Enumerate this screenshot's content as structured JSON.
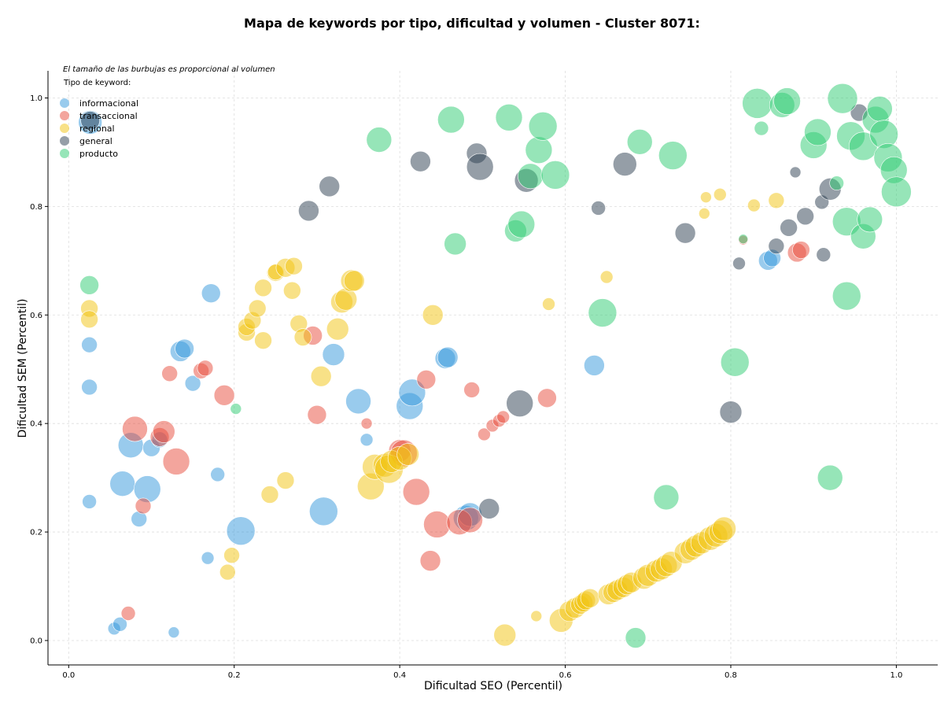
{
  "chart_data": {
    "type": "scatter",
    "title": "Mapa de keywords por tipo, dificultad y volumen - Cluster 8071:",
    "xlabel": "Dificultad SEO (Percentil)",
    "ylabel": "Dificultad SEM (Percentil)",
    "xlim": [
      -0.025,
      1.05
    ],
    "ylim": [
      -0.045,
      1.05
    ],
    "xticks": [
      0.0,
      0.2,
      0.4,
      0.6,
      0.8,
      1.0
    ],
    "yticks": [
      0.0,
      0.2,
      0.4,
      0.6,
      0.8,
      1.0
    ],
    "xtick_labels": [
      "0.0",
      "0.2",
      "0.4",
      "0.6",
      "0.8",
      "1.0"
    ],
    "ytick_labels": [
      "0.0",
      "0.2",
      "0.4",
      "0.6",
      "0.8",
      "1.0"
    ],
    "grid": true,
    "legend_position": "top-left",
    "note": "El tamaño de las burbujas es proporcional al volumen",
    "legend_title": "Tipo de keyword:",
    "series": [
      {
        "name": "informacional",
        "color": "#3498db",
        "points": [
          [
            0.026,
            0.955,
            15
          ],
          [
            0.025,
            0.545,
            10
          ],
          [
            0.025,
            0.467,
            10
          ],
          [
            0.025,
            0.256,
            9
          ],
          [
            0.055,
            0.022,
            8
          ],
          [
            0.062,
            0.03,
            9
          ],
          [
            0.065,
            0.289,
            16
          ],
          [
            0.075,
            0.36,
            16
          ],
          [
            0.095,
            0.279,
            17
          ],
          [
            0.1,
            0.355,
            11
          ],
          [
            0.11,
            0.37,
            10
          ],
          [
            0.085,
            0.224,
            10
          ],
          [
            0.135,
            0.533,
            13
          ],
          [
            0.14,
            0.538,
            12
          ],
          [
            0.15,
            0.474,
            10
          ],
          [
            0.172,
            0.64,
            12
          ],
          [
            0.18,
            0.306,
            9
          ],
          [
            0.168,
            0.152,
            8
          ],
          [
            0.127,
            0.015,
            7
          ],
          [
            0.208,
            0.202,
            18
          ],
          [
            0.32,
            0.527,
            14
          ],
          [
            0.35,
            0.441,
            16
          ],
          [
            0.308,
            0.238,
            18
          ],
          [
            0.36,
            0.37,
            8
          ],
          [
            0.412,
            0.432,
            17
          ],
          [
            0.415,
            0.457,
            17
          ],
          [
            0.455,
            0.52,
            13
          ],
          [
            0.458,
            0.522,
            13
          ],
          [
            0.48,
            0.226,
            16
          ],
          [
            0.485,
            0.232,
            15
          ],
          [
            0.635,
            0.507,
            13
          ],
          [
            0.845,
            0.7,
            12
          ],
          [
            0.85,
            0.705,
            11
          ]
        ]
      },
      {
        "name": "transaccional",
        "color": "#e74c3c",
        "points": [
          [
            0.072,
            0.05,
            9
          ],
          [
            0.08,
            0.39,
            16
          ],
          [
            0.09,
            0.248,
            10
          ],
          [
            0.11,
            0.375,
            12
          ],
          [
            0.115,
            0.385,
            14
          ],
          [
            0.122,
            0.492,
            10
          ],
          [
            0.13,
            0.33,
            17
          ],
          [
            0.16,
            0.497,
            10
          ],
          [
            0.165,
            0.502,
            10
          ],
          [
            0.188,
            0.452,
            13
          ],
          [
            0.295,
            0.562,
            12
          ],
          [
            0.3,
            0.416,
            12
          ],
          [
            0.36,
            0.4,
            7
          ],
          [
            0.4,
            0.35,
            14
          ],
          [
            0.405,
            0.345,
            17
          ],
          [
            0.42,
            0.274,
            17
          ],
          [
            0.432,
            0.481,
            12
          ],
          [
            0.437,
            0.147,
            13
          ],
          [
            0.445,
            0.214,
            17
          ],
          [
            0.472,
            0.218,
            16
          ],
          [
            0.485,
            0.222,
            16
          ],
          [
            0.487,
            0.462,
            10
          ],
          [
            0.502,
            0.38,
            8
          ],
          [
            0.512,
            0.396,
            8
          ],
          [
            0.52,
            0.405,
            8
          ],
          [
            0.525,
            0.412,
            8
          ],
          [
            0.578,
            0.447,
            12
          ],
          [
            0.815,
            0.738,
            6
          ],
          [
            0.88,
            0.715,
            12
          ],
          [
            0.885,
            0.72,
            11
          ]
        ]
      },
      {
        "name": "regional",
        "color": "#f1c40f",
        "points": [
          [
            0.025,
            0.612,
            11
          ],
          [
            0.025,
            0.592,
            11
          ],
          [
            0.192,
            0.126,
            10
          ],
          [
            0.197,
            0.157,
            10
          ],
          [
            0.215,
            0.568,
            11
          ],
          [
            0.215,
            0.578,
            11
          ],
          [
            0.222,
            0.59,
            11
          ],
          [
            0.228,
            0.612,
            11
          ],
          [
            0.235,
            0.553,
            11
          ],
          [
            0.235,
            0.65,
            11
          ],
          [
            0.243,
            0.269,
            11
          ],
          [
            0.25,
            0.678,
            11
          ],
          [
            0.25,
            0.679,
            10
          ],
          [
            0.262,
            0.295,
            11
          ],
          [
            0.262,
            0.687,
            12
          ],
          [
            0.27,
            0.645,
            11
          ],
          [
            0.272,
            0.69,
            11
          ],
          [
            0.278,
            0.584,
            11
          ],
          [
            0.283,
            0.559,
            11
          ],
          [
            0.305,
            0.487,
            13
          ],
          [
            0.325,
            0.574,
            14
          ],
          [
            0.33,
            0.624,
            14
          ],
          [
            0.335,
            0.629,
            14
          ],
          [
            0.342,
            0.663,
            14
          ],
          [
            0.345,
            0.663,
            13
          ],
          [
            0.365,
            0.284,
            17
          ],
          [
            0.37,
            0.32,
            16
          ],
          [
            0.382,
            0.323,
            15
          ],
          [
            0.387,
            0.316,
            18
          ],
          [
            0.39,
            0.33,
            14
          ],
          [
            0.4,
            0.336,
            15
          ],
          [
            0.41,
            0.343,
            14
          ],
          [
            0.44,
            0.6,
            13
          ],
          [
            0.527,
            0.01,
            14
          ],
          [
            0.565,
            0.045,
            7
          ],
          [
            0.58,
            0.62,
            8
          ],
          [
            0.595,
            0.037,
            15
          ],
          [
            0.605,
            0.054,
            13
          ],
          [
            0.612,
            0.06,
            13
          ],
          [
            0.618,
            0.066,
            12
          ],
          [
            0.622,
            0.07,
            12
          ],
          [
            0.625,
            0.074,
            12
          ],
          [
            0.63,
            0.078,
            12
          ],
          [
            0.652,
            0.085,
            13
          ],
          [
            0.658,
            0.089,
            13
          ],
          [
            0.663,
            0.093,
            13
          ],
          [
            0.67,
            0.098,
            13
          ],
          [
            0.675,
            0.103,
            13
          ],
          [
            0.68,
            0.107,
            13
          ],
          [
            0.695,
            0.115,
            14
          ],
          [
            0.7,
            0.12,
            14
          ],
          [
            0.71,
            0.128,
            14
          ],
          [
            0.716,
            0.132,
            14
          ],
          [
            0.722,
            0.138,
            14
          ],
          [
            0.728,
            0.144,
            14
          ],
          [
            0.745,
            0.162,
            14
          ],
          [
            0.752,
            0.168,
            14
          ],
          [
            0.758,
            0.174,
            14
          ],
          [
            0.765,
            0.18,
            14
          ],
          [
            0.775,
            0.188,
            15
          ],
          [
            0.782,
            0.194,
            15
          ],
          [
            0.788,
            0.2,
            15
          ],
          [
            0.792,
            0.206,
            15
          ],
          [
            0.65,
            0.67,
            8
          ],
          [
            0.768,
            0.787,
            7
          ],
          [
            0.77,
            0.817,
            7
          ],
          [
            0.787,
            0.822,
            8
          ],
          [
            0.828,
            0.802,
            8
          ],
          [
            0.855,
            0.811,
            10
          ]
        ]
      },
      {
        "name": "general",
        "color": "#2c3e50",
        "points": [
          [
            0.026,
            0.958,
            12
          ],
          [
            0.29,
            0.792,
            13
          ],
          [
            0.315,
            0.837,
            13
          ],
          [
            0.425,
            0.883,
            13
          ],
          [
            0.493,
            0.898,
            13
          ],
          [
            0.497,
            0.873,
            17
          ],
          [
            0.508,
            0.243,
            13
          ],
          [
            0.545,
            0.437,
            17
          ],
          [
            0.553,
            0.848,
            15
          ],
          [
            0.64,
            0.797,
            9
          ],
          [
            0.672,
            0.878,
            15
          ],
          [
            0.745,
            0.751,
            13
          ],
          [
            0.8,
            0.421,
            14
          ],
          [
            0.81,
            0.695,
            8
          ],
          [
            0.855,
            0.727,
            10
          ],
          [
            0.87,
            0.761,
            11
          ],
          [
            0.878,
            0.863,
            7
          ],
          [
            0.89,
            0.782,
            11
          ],
          [
            0.91,
            0.808,
            9
          ],
          [
            0.912,
            0.711,
            9
          ],
          [
            0.92,
            0.832,
            14
          ],
          [
            0.955,
            0.973,
            11
          ]
        ]
      },
      {
        "name": "producto",
        "color": "#2ecc71",
        "points": [
          [
            0.025,
            0.655,
            12
          ],
          [
            0.202,
            0.427,
            7
          ],
          [
            0.375,
            0.923,
            16
          ],
          [
            0.462,
            0.96,
            17
          ],
          [
            0.467,
            0.731,
            14
          ],
          [
            0.532,
            0.964,
            17
          ],
          [
            0.54,
            0.755,
            14
          ],
          [
            0.547,
            0.767,
            17
          ],
          [
            0.558,
            0.856,
            16
          ],
          [
            0.568,
            0.904,
            17
          ],
          [
            0.573,
            0.948,
            18
          ],
          [
            0.588,
            0.858,
            18
          ],
          [
            0.645,
            0.604,
            18
          ],
          [
            0.69,
            0.919,
            16
          ],
          [
            0.685,
            0.005,
            13
          ],
          [
            0.722,
            0.264,
            16
          ],
          [
            0.73,
            0.894,
            18
          ],
          [
            0.805,
            0.513,
            18
          ],
          [
            0.815,
            0.74,
            6
          ],
          [
            0.832,
            0.99,
            19
          ],
          [
            0.837,
            0.944,
            9
          ],
          [
            0.862,
            0.987,
            16
          ],
          [
            0.868,
            0.994,
            17
          ],
          [
            0.9,
            0.913,
            17
          ],
          [
            0.905,
            0.937,
            17
          ],
          [
            0.928,
            0.843,
            9
          ],
          [
            0.935,
            0.999,
            19
          ],
          [
            0.94,
            0.772,
            18
          ],
          [
            0.94,
            0.635,
            18
          ],
          [
            0.945,
            0.93,
            18
          ],
          [
            0.96,
            0.745,
            16
          ],
          [
            0.96,
            0.911,
            18
          ],
          [
            0.968,
            0.776,
            16
          ],
          [
            0.975,
            0.96,
            17
          ],
          [
            0.98,
            0.98,
            16
          ],
          [
            0.985,
            0.933,
            18
          ],
          [
            0.99,
            0.89,
            18
          ],
          [
            0.997,
            0.867,
            17
          ],
          [
            1.0,
            0.827,
            19
          ],
          [
            0.92,
            0.3,
            16
          ]
        ]
      }
    ]
  }
}
